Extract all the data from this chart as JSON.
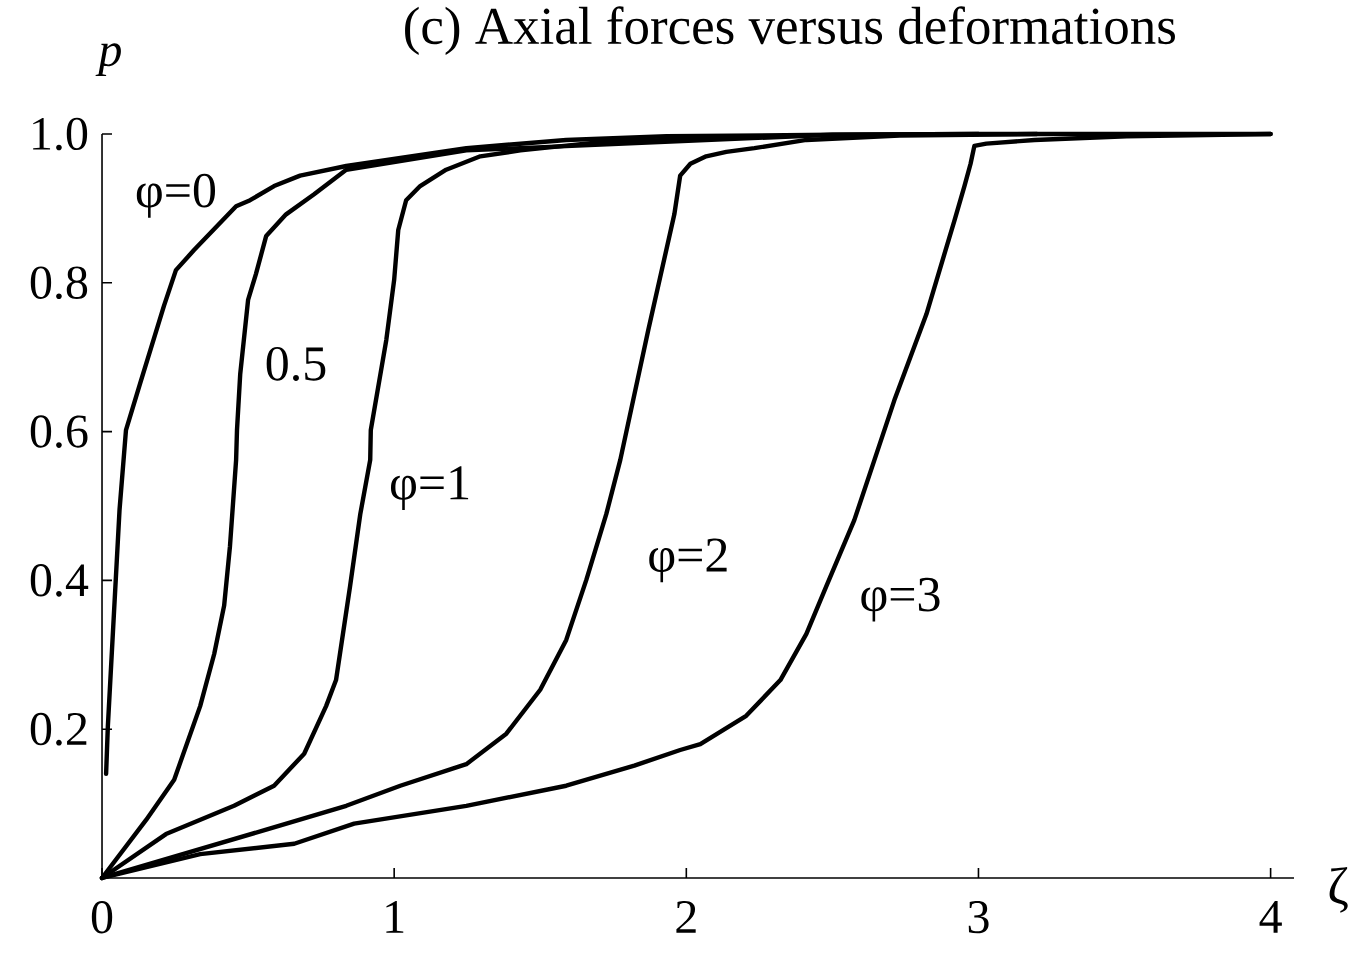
{
  "chart_data": {
    "type": "line",
    "title": "(c) Axial forces versus deformations",
    "xlabel": "ζ",
    "ylabel": "p",
    "xlim": [
      0,
      4.08
    ],
    "ylim": [
      0,
      1
    ],
    "xticks": [
      0,
      1,
      2,
      3,
      4
    ],
    "yticks": [
      0.2,
      0.4,
      0.6,
      0.8,
      {
        "value": 1,
        "label": "1.0"
      }
    ],
    "series": [
      {
        "name": "φ=0",
        "color": "#000000",
        "x": [
          0.014,
          0.02,
          0.06,
          0.082,
          0.13,
          0.212,
          0.253,
          0.315,
          0.459,
          0.507,
          0.589,
          0.678,
          0.836,
          1.247,
          1.589,
          1.932,
          2.5,
          3.0,
          3.5,
          4.0
        ],
        "values": [
          0.14,
          0.204,
          0.495,
          0.602,
          0.664,
          0.769,
          0.817,
          0.844,
          0.903,
          0.911,
          0.93,
          0.944,
          0.957,
          0.981,
          0.992,
          0.997,
          0.999,
          1.0,
          1.0,
          1.0
        ]
      },
      {
        "name": "0.5",
        "color": "#000000",
        "x": [
          0,
          0.151,
          0.247,
          0.336,
          0.384,
          0.418,
          0.438,
          0.459,
          0.462,
          0.473,
          0.5,
          0.527,
          0.562,
          0.63,
          0.726,
          0.836,
          1.247,
          2.5,
          3.0
        ],
        "values": [
          0,
          0.078,
          0.132,
          0.231,
          0.301,
          0.366,
          0.446,
          0.562,
          0.602,
          0.677,
          0.777,
          0.812,
          0.863,
          0.892,
          0.919,
          0.952,
          0.978,
          0.999,
          1.0
        ]
      },
      {
        "name": "φ=1",
        "color": "#000000",
        "x": [
          0,
          0.219,
          0.452,
          0.589,
          0.692,
          0.767,
          0.801,
          0.849,
          0.884,
          0.918,
          0.92,
          0.973,
          1.0,
          1.014,
          1.041,
          1.089,
          1.178,
          1.295,
          1.432,
          1.705,
          2.39
        ],
        "values": [
          0,
          0.059,
          0.097,
          0.124,
          0.167,
          0.231,
          0.266,
          0.392,
          0.489,
          0.562,
          0.602,
          0.723,
          0.804,
          0.871,
          0.911,
          0.93,
          0.952,
          0.97,
          0.978,
          0.989,
          0.998
        ]
      },
      {
        "name": "φ=2",
        "color": "#000000",
        "x": [
          0,
          0.562,
          0.836,
          1.021,
          1.247,
          1.384,
          1.5,
          1.589,
          1.658,
          1.726,
          1.774,
          1.87,
          1.959,
          1.979,
          2.014,
          2.068,
          2.137,
          2.233,
          2.411,
          2.73,
          3.2
        ],
        "values": [
          0,
          0.065,
          0.097,
          0.124,
          0.153,
          0.194,
          0.253,
          0.32,
          0.401,
          0.489,
          0.562,
          0.737,
          0.892,
          0.944,
          0.96,
          0.97,
          0.976,
          0.981,
          0.992,
          0.998,
          1.0
        ]
      },
      {
        "name": "φ=3",
        "color": "#000000",
        "x": [
          0,
          0.336,
          0.658,
          0.863,
          1.247,
          1.589,
          1.822,
          1.979,
          2.048,
          2.205,
          2.322,
          2.411,
          2.479,
          2.575,
          2.644,
          2.712,
          2.822,
          2.918,
          2.952,
          2.973,
          2.986,
          3.027,
          3.192,
          3.507,
          4.0
        ],
        "values": [
          0,
          0.032,
          0.046,
          0.073,
          0.097,
          0.124,
          0.151,
          0.172,
          0.18,
          0.218,
          0.266,
          0.328,
          0.392,
          0.481,
          0.562,
          0.642,
          0.758,
          0.884,
          0.93,
          0.96,
          0.984,
          0.987,
          0.992,
          0.997,
          1.0
        ]
      }
    ]
  }
}
